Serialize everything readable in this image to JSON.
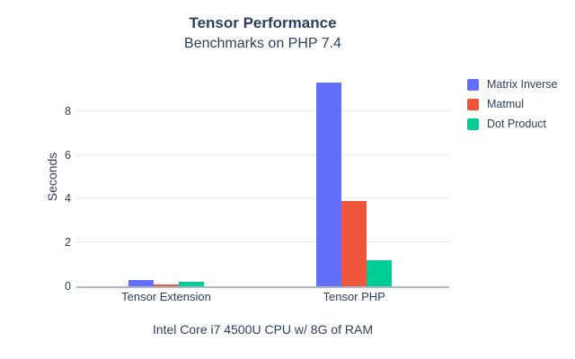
{
  "title": "Tensor Performance",
  "subtitle": "Benchmarks on PHP 7.4",
  "colors": {
    "text": "#2a3f5f",
    "grid": "#e3e8ee",
    "axis_line": "#a9b8cb",
    "background": "#ffffff"
  },
  "chart_data": {
    "type": "bar",
    "title": "Tensor Performance",
    "subtitle": "Benchmarks on PHP 7.4",
    "categories": [
      "Tensor Extension",
      "Tensor PHP"
    ],
    "series": [
      {
        "name": "Matrix Inverse",
        "color": "#636EFA",
        "values": [
          0.3,
          9.3
        ]
      },
      {
        "name": "Matmul",
        "color": "#EF553B",
        "values": [
          0.07,
          3.9
        ]
      },
      {
        "name": "Dot Product",
        "color": "#00CC96",
        "values": [
          0.22,
          1.2
        ]
      }
    ],
    "xlabel": "Intel Core i7 4500U CPU w/ 8G of RAM",
    "ylabel": "Seconds",
    "ylim": [
      0,
      10
    ],
    "yticks": [
      0,
      2,
      4,
      6,
      8
    ],
    "grid": true,
    "legend_position": "right"
  }
}
